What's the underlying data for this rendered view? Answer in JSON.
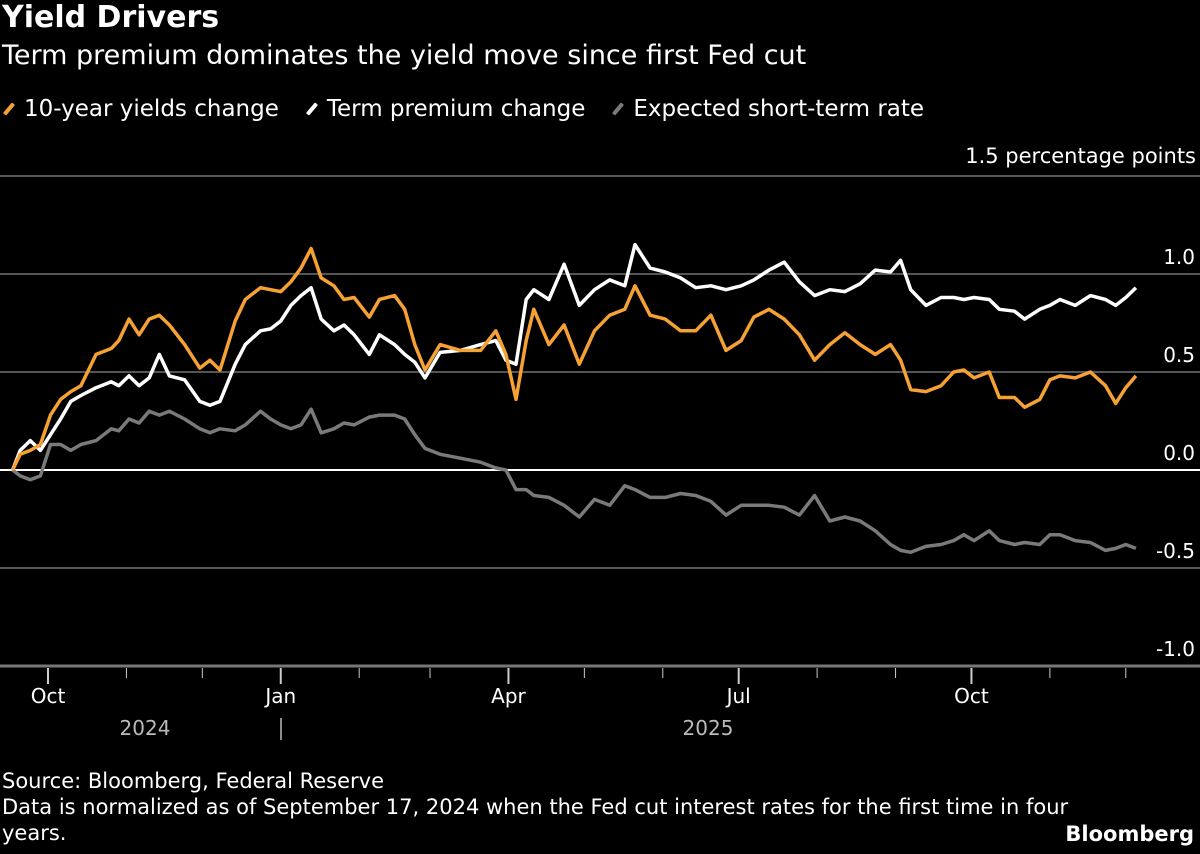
{
  "chart_data": {
    "type": "line",
    "title": "Yield Drivers",
    "subtitle": "Term premium dominates the yield move since first Fed cut",
    "ylabel": "1.5 percentage points",
    "ylim": [
      -1.0,
      1.5
    ],
    "yticks": [
      "1.0",
      "0.5",
      "0.0",
      "-0.5",
      "-1.0"
    ],
    "ytick_values": [
      1.0,
      0.5,
      0.0,
      -0.5,
      -1.0
    ],
    "xticks": [
      {
        "date": "2024-10-01",
        "label": "Oct"
      },
      {
        "date": "2025-01-01",
        "label": "Jan"
      },
      {
        "date": "2025-04-01",
        "label": "Apr"
      },
      {
        "date": "2025-07-01",
        "label": "Jul"
      },
      {
        "date": "2025-10-01",
        "label": "Oct"
      }
    ],
    "year_labels": [
      "2024",
      "2025"
    ],
    "grid": true,
    "legend_position": "top-left",
    "x": [
      "2024-09-17",
      "2024-09-20",
      "2024-09-24",
      "2024-09-28",
      "2024-10-02",
      "2024-10-06",
      "2024-10-10",
      "2024-10-14",
      "2024-10-20",
      "2024-10-26",
      "2024-10-29",
      "2024-11-02",
      "2024-11-06",
      "2024-11-10",
      "2024-11-14",
      "2024-11-18",
      "2024-11-24",
      "2024-11-30",
      "2024-12-04",
      "2024-12-08",
      "2024-12-14",
      "2024-12-18",
      "2024-12-24",
      "2024-12-28",
      "2025-01-01",
      "2025-01-05",
      "2025-01-09",
      "2025-01-13",
      "2025-01-17",
      "2025-01-22",
      "2025-01-26",
      "2025-01-30",
      "2025-02-05",
      "2025-02-09",
      "2025-02-15",
      "2025-02-19",
      "2025-02-23",
      "2025-02-27",
      "2025-03-05",
      "2025-03-13",
      "2025-03-21",
      "2025-03-27",
      "2025-03-31",
      "2025-04-04",
      "2025-04-08",
      "2025-04-11",
      "2025-04-17",
      "2025-04-23",
      "2025-04-29",
      "2025-05-05",
      "2025-05-11",
      "2025-05-17",
      "2025-05-21",
      "2025-05-27",
      "2025-06-02",
      "2025-06-08",
      "2025-06-14",
      "2025-06-20",
      "2025-06-26",
      "2025-07-02",
      "2025-07-07",
      "2025-07-13",
      "2025-07-19",
      "2025-07-25",
      "2025-07-31",
      "2025-08-06",
      "2025-08-12",
      "2025-08-18",
      "2025-08-24",
      "2025-08-30",
      "2025-09-03",
      "2025-09-07",
      "2025-09-13",
      "2025-09-19",
      "2025-09-24",
      "2025-09-28",
      "2025-10-02",
      "2025-10-08",
      "2025-10-12",
      "2025-10-18",
      "2025-10-22",
      "2025-10-28",
      "2025-11-01",
      "2025-11-05",
      "2025-11-11",
      "2025-11-17",
      "2025-11-23",
      "2025-11-27",
      "2025-12-01",
      "2025-12-05"
    ],
    "series": [
      {
        "name": "10-year yields change",
        "color": "#f5a133",
        "values": [
          0.0,
          0.08,
          0.1,
          0.13,
          0.28,
          0.36,
          0.4,
          0.43,
          0.59,
          0.62,
          0.66,
          0.77,
          0.69,
          0.77,
          0.79,
          0.74,
          0.64,
          0.52,
          0.56,
          0.51,
          0.76,
          0.87,
          0.93,
          0.92,
          0.91,
          0.96,
          1.03,
          1.13,
          0.98,
          0.94,
          0.87,
          0.88,
          0.78,
          0.87,
          0.89,
          0.82,
          0.64,
          0.51,
          0.64,
          0.61,
          0.61,
          0.71,
          0.59,
          0.36,
          0.66,
          0.82,
          0.64,
          0.74,
          0.54,
          0.71,
          0.79,
          0.82,
          0.94,
          0.79,
          0.77,
          0.71,
          0.71,
          0.79,
          0.61,
          0.66,
          0.78,
          0.82,
          0.77,
          0.69,
          0.56,
          0.64,
          0.7,
          0.64,
          0.59,
          0.64,
          0.56,
          0.41,
          0.4,
          0.43,
          0.5,
          0.51,
          0.47,
          0.5,
          0.37,
          0.37,
          0.32,
          0.36,
          0.46,
          0.48,
          0.47,
          0.5,
          0.43,
          0.34,
          0.42,
          0.48
        ]
      },
      {
        "name": "Term premium change",
        "color": "#ffffff",
        "values": [
          0.0,
          0.1,
          0.15,
          0.1,
          0.18,
          0.26,
          0.35,
          0.38,
          0.42,
          0.45,
          0.43,
          0.48,
          0.43,
          0.47,
          0.59,
          0.48,
          0.46,
          0.35,
          0.33,
          0.35,
          0.54,
          0.64,
          0.71,
          0.72,
          0.76,
          0.84,
          0.89,
          0.93,
          0.77,
          0.71,
          0.74,
          0.69,
          0.59,
          0.69,
          0.64,
          0.59,
          0.55,
          0.47,
          0.6,
          0.61,
          0.64,
          0.66,
          0.56,
          0.54,
          0.87,
          0.92,
          0.87,
          1.05,
          0.84,
          0.92,
          0.97,
          0.94,
          1.15,
          1.03,
          1.01,
          0.98,
          0.93,
          0.94,
          0.92,
          0.94,
          0.97,
          1.02,
          1.06,
          0.96,
          0.89,
          0.92,
          0.91,
          0.95,
          1.02,
          1.01,
          1.07,
          0.92,
          0.84,
          0.88,
          0.88,
          0.87,
          0.88,
          0.87,
          0.82,
          0.81,
          0.77,
          0.82,
          0.84,
          0.87,
          0.84,
          0.89,
          0.87,
          0.84,
          0.88,
          0.93
        ]
      },
      {
        "name": "Expected short-term rate",
        "color": "#7a7a7a",
        "values": [
          0.0,
          -0.03,
          -0.05,
          -0.03,
          0.13,
          0.13,
          0.1,
          0.13,
          0.15,
          0.21,
          0.2,
          0.26,
          0.24,
          0.3,
          0.28,
          0.3,
          0.26,
          0.21,
          0.19,
          0.21,
          0.2,
          0.23,
          0.3,
          0.26,
          0.23,
          0.21,
          0.23,
          0.31,
          0.19,
          0.21,
          0.24,
          0.23,
          0.27,
          0.28,
          0.28,
          0.26,
          0.18,
          0.11,
          0.08,
          0.06,
          0.04,
          0.01,
          0.0,
          -0.1,
          -0.1,
          -0.13,
          -0.14,
          -0.18,
          -0.24,
          -0.15,
          -0.18,
          -0.08,
          -0.1,
          -0.14,
          -0.14,
          -0.12,
          -0.13,
          -0.16,
          -0.23,
          -0.18,
          -0.18,
          -0.18,
          -0.19,
          -0.23,
          -0.13,
          -0.26,
          -0.24,
          -0.26,
          -0.31,
          -0.38,
          -0.41,
          -0.42,
          -0.39,
          -0.38,
          -0.36,
          -0.33,
          -0.36,
          -0.31,
          -0.36,
          -0.38,
          -0.37,
          -0.38,
          -0.33,
          -0.33,
          -0.36,
          -0.37,
          -0.41,
          -0.4,
          -0.38,
          -0.4
        ]
      }
    ]
  },
  "footer": {
    "source": "Source: Bloomberg, Federal Reserve",
    "note": "Data is normalized as of September 17, 2024 when the Fed cut interest rates for the first time in four years.",
    "brand": "Bloomberg"
  }
}
